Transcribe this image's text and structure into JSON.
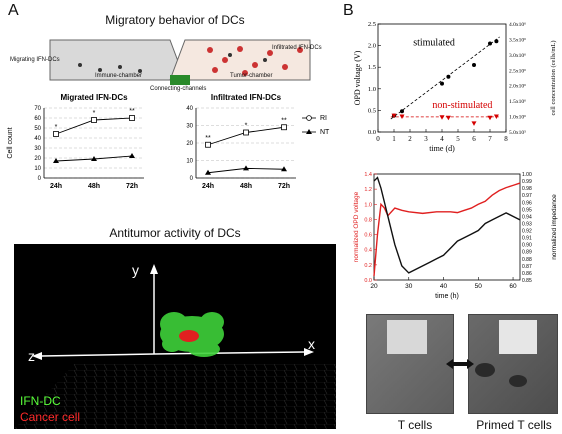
{
  "panels": {
    "A": "A",
    "B": "B"
  },
  "panelA": {
    "title": "Migratory behavior of DCs",
    "device": {
      "left_label": "Migrating IFN-DCs",
      "right_label": "Infiltrated IFN-DCs",
      "immune_label": "Immune-chamber",
      "tumor_label": "Tumor-chamber",
      "connect_label": "Connecting-channels"
    },
    "bottom_title": "Antitumor activity of DCs",
    "axes3d": {
      "x": "x",
      "y": "y",
      "z": "z"
    },
    "legend3d": [
      {
        "label": "IFN-DC",
        "color": "#5aff3a"
      },
      {
        "label": "Cancer cell",
        "color": "#ff2a2a"
      }
    ]
  },
  "panelB": {
    "photos": {
      "left_caption": "T cells",
      "right_caption": "Primed T cells"
    }
  },
  "chart_data": [
    {
      "type": "line",
      "title": "Migrated IFN-DCs",
      "ylabel": "Cell count",
      "categories": [
        "24h",
        "48h",
        "72h"
      ],
      "ylim": [
        0,
        70
      ],
      "yticks": [
        0,
        10,
        20,
        30,
        40,
        50,
        60,
        70
      ],
      "series": [
        {
          "name": "RI",
          "values": [
            44,
            58,
            60
          ]
        },
        {
          "name": "NT",
          "values": [
            17,
            19,
            22
          ]
        }
      ],
      "annotations": [
        "*",
        "*",
        "**"
      ]
    },
    {
      "type": "line",
      "title": "Infiltrated IFN-DCs",
      "categories": [
        "24h",
        "48h",
        "72h"
      ],
      "ylim": [
        0,
        40
      ],
      "yticks": [
        0,
        10,
        20,
        30,
        40
      ],
      "series": [
        {
          "name": "RI",
          "values": [
            19,
            26,
            29
          ]
        },
        {
          "name": "NT",
          "values": [
            3,
            5.5,
            5
          ]
        }
      ],
      "annotations": [
        "**",
        "*",
        "**"
      ]
    },
    {
      "type": "scatter",
      "xlabel": "time (d)",
      "ylabel": "OPD voltage (V)",
      "ylabel_right": "cell concentration (cells/mL)",
      "xlim": [
        0,
        8
      ],
      "xticks": [
        0,
        1,
        2,
        3,
        4,
        5,
        6,
        7,
        8
      ],
      "ylim": [
        0,
        2.5
      ],
      "yticks": [
        0.0,
        0.5,
        1.0,
        1.5,
        2.0,
        2.5
      ],
      "yticks_right": [
        "5.0x10⁵",
        "1.0x10⁶",
        "1.5x10⁶",
        "2.0x10⁶",
        "2.5x10⁶",
        "3.0x10⁶",
        "3.5x10⁶",
        "4.0x10⁶"
      ],
      "series": [
        {
          "name": "stimulated",
          "color": "#000000",
          "x": [
            1.0,
            1.5,
            4.0,
            4.4,
            6.0,
            7.0,
            7.4
          ],
          "y": [
            0.38,
            0.48,
            1.12,
            1.28,
            1.55,
            2.05,
            2.1
          ]
        },
        {
          "name": "non-stimulated",
          "color": "#d40000",
          "x": [
            1.0,
            1.5,
            4.0,
            4.4,
            6.0,
            7.0,
            7.4
          ],
          "y": [
            0.38,
            0.36,
            0.34,
            0.33,
            0.2,
            0.33,
            0.36
          ]
        }
      ]
    },
    {
      "type": "line",
      "xlabel": "time (h)",
      "ylabel": "normalized OPD voltage",
      "ylabel_right": "normalized impedance",
      "xlim": [
        20,
        62
      ],
      "xticks": [
        20,
        30,
        40,
        50,
        60
      ],
      "ylim": [
        0.0,
        1.4
      ],
      "yticks": [
        0.0,
        0.2,
        0.4,
        0.6,
        0.8,
        1.0,
        1.2,
        1.4
      ],
      "ylim_right": [
        0.85,
        1.0
      ],
      "yticks_right": [
        0.85,
        0.86,
        0.87,
        0.88,
        0.89,
        0.9,
        0.91,
        0.92,
        0.93,
        0.94,
        0.95,
        0.96,
        0.97,
        0.98,
        0.99,
        1.0
      ],
      "series": [
        {
          "name": "normalized OPD voltage",
          "color": "#e02020",
          "axis": "left",
          "x": [
            20,
            21,
            22,
            23,
            24,
            26,
            28,
            30,
            34,
            38,
            42,
            44,
            46,
            48,
            50,
            52,
            54,
            56,
            58,
            60,
            62
          ],
          "y": [
            0.05,
            0.6,
            1.0,
            0.95,
            0.85,
            0.95,
            0.92,
            0.9,
            0.88,
            0.9,
            0.9,
            0.89,
            0.92,
            0.95,
            1.0,
            1.04,
            1.12,
            1.18,
            1.22,
            1.25,
            1.28
          ]
        },
        {
          "name": "normalized impedance",
          "color": "#111111",
          "axis": "right",
          "x": [
            20,
            21,
            22,
            23,
            24,
            25,
            26,
            28,
            30,
            32,
            34,
            36,
            38,
            40,
            42,
            44,
            46,
            48,
            50,
            52,
            54,
            56,
            58,
            60,
            62
          ],
          "y": [
            0.99,
            0.995,
            0.98,
            0.96,
            0.94,
            0.92,
            0.9,
            0.87,
            0.86,
            0.865,
            0.87,
            0.875,
            0.88,
            0.885,
            0.895,
            0.905,
            0.91,
            0.915,
            0.92,
            0.93,
            0.935,
            0.94,
            0.945,
            0.94,
            0.935
          ]
        }
      ]
    }
  ]
}
